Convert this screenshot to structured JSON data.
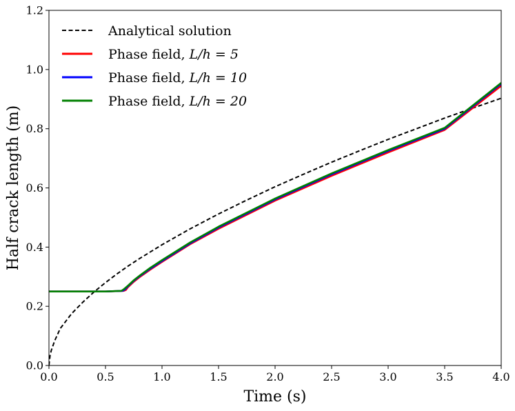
{
  "chart_data": {
    "type": "line",
    "title": "",
    "xlabel": "Time (s)",
    "ylabel": "Half crack length (m)",
    "xlim": [
      0.0,
      4.0
    ],
    "ylim": [
      0.0,
      1.2
    ],
    "xticks": [
      "0.0",
      "0.5",
      "1.0",
      "1.5",
      "2.0",
      "2.5",
      "3.0",
      "3.5",
      "4.0"
    ],
    "yticks": [
      "0.0",
      "0.2",
      "0.4",
      "0.6",
      "0.8",
      "1.0",
      "1.2"
    ],
    "legend_position": "top-left",
    "series": [
      {
        "name": "Analytical solution",
        "color": "#000000",
        "style": "dashed",
        "x": [
          0.0,
          0.01,
          0.02,
          0.05,
          0.1,
          0.2,
          0.3,
          0.4,
          0.5,
          0.6,
          0.7,
          0.8,
          1.0,
          1.25,
          1.5,
          1.75,
          2.0,
          2.25,
          2.5,
          2.75,
          3.0,
          3.25,
          3.5,
          3.75,
          4.0
        ],
        "y": [
          0.0,
          0.034,
          0.05,
          0.083,
          0.125,
          0.175,
          0.214,
          0.249,
          0.28,
          0.309,
          0.336,
          0.361,
          0.408,
          0.462,
          0.512,
          0.559,
          0.604,
          0.646,
          0.687,
          0.726,
          0.764,
          0.8,
          0.836,
          0.87,
          0.903
        ]
      },
      {
        "name": "Phase field, L/h = 5",
        "label_prefix": "Phase field, ",
        "label_math": "L/h = 5",
        "color": "#ff0000",
        "style": "solid",
        "x": [
          0.0,
          0.5,
          0.66,
          0.68,
          0.7,
          0.75,
          0.8,
          0.9,
          1.0,
          1.25,
          1.5,
          2.0,
          2.5,
          3.0,
          3.5,
          4.0
        ],
        "y": [
          0.25,
          0.25,
          0.252,
          0.255,
          0.265,
          0.283,
          0.298,
          0.325,
          0.35,
          0.41,
          0.462,
          0.557,
          0.641,
          0.72,
          0.796,
          0.945
        ]
      },
      {
        "name": "Phase field, L/h = 10",
        "label_prefix": "Phase field, ",
        "label_math": "L/h = 10",
        "color": "#0000ff",
        "style": "solid",
        "x": [
          0.0,
          0.5,
          0.65,
          0.67,
          0.7,
          0.75,
          0.8,
          0.9,
          1.0,
          1.25,
          1.5,
          2.0,
          2.5,
          3.0,
          3.5,
          4.0
        ],
        "y": [
          0.25,
          0.25,
          0.252,
          0.256,
          0.268,
          0.286,
          0.301,
          0.328,
          0.353,
          0.413,
          0.466,
          0.561,
          0.646,
          0.725,
          0.8,
          0.952
        ]
      },
      {
        "name": "Phase field, L/h = 20",
        "label_prefix": "Phase field, ",
        "label_math": "L/h = 20",
        "color": "#008000",
        "style": "solid",
        "x": [
          0.0,
          0.5,
          0.64,
          0.66,
          0.7,
          0.75,
          0.8,
          0.9,
          1.0,
          1.25,
          1.5,
          2.0,
          2.5,
          3.0,
          3.5,
          4.0
        ],
        "y": [
          0.25,
          0.25,
          0.252,
          0.257,
          0.27,
          0.288,
          0.303,
          0.331,
          0.356,
          0.416,
          0.469,
          0.564,
          0.649,
          0.728,
          0.803,
          0.955
        ]
      }
    ]
  }
}
